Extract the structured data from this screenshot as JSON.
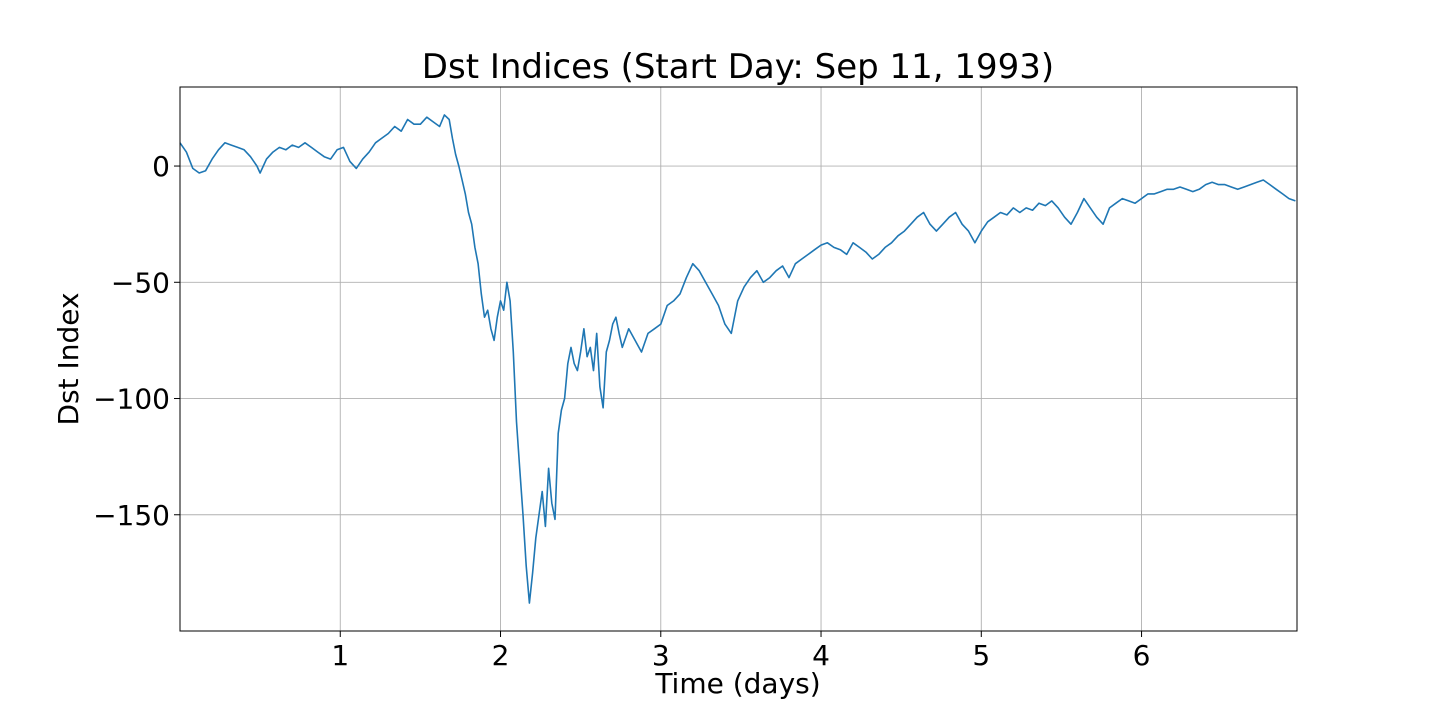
{
  "chart_data": {
    "type": "line",
    "title": "Dst Indices (Start Day: Sep 11, 1993)",
    "xlabel": "Time (days)",
    "ylabel": "Dst Index",
    "xlim": [
      0.0,
      6.97
    ],
    "ylim": [
      -200,
      34
    ],
    "xticks": [
      1,
      2,
      3,
      4,
      5,
      6
    ],
    "xtick_labels": [
      "1",
      "2",
      "3",
      "4",
      "5",
      "6"
    ],
    "yticks": [
      0,
      -50,
      -100,
      -150
    ],
    "ytick_labels": [
      "0",
      "−50",
      "−100",
      "−150"
    ],
    "grid": true,
    "legend": "none",
    "series": [
      {
        "color": "#1f77b4",
        "x": [
          0.0,
          0.04,
          0.08,
          0.12,
          0.16,
          0.2,
          0.24,
          0.28,
          0.32,
          0.36,
          0.4,
          0.44,
          0.48,
          0.5,
          0.54,
          0.58,
          0.62,
          0.66,
          0.7,
          0.74,
          0.78,
          0.82,
          0.86,
          0.9,
          0.94,
          0.98,
          1.02,
          1.06,
          1.1,
          1.14,
          1.18,
          1.22,
          1.26,
          1.3,
          1.34,
          1.38,
          1.42,
          1.46,
          1.5,
          1.54,
          1.58,
          1.62,
          1.65,
          1.68,
          1.7,
          1.72,
          1.74,
          1.76,
          1.78,
          1.8,
          1.82,
          1.84,
          1.86,
          1.88,
          1.9,
          1.92,
          1.94,
          1.96,
          1.98,
          2.0,
          2.02,
          2.04,
          2.06,
          2.08,
          2.1,
          2.12,
          2.14,
          2.16,
          2.18,
          2.2,
          2.22,
          2.24,
          2.26,
          2.28,
          2.3,
          2.32,
          2.34,
          2.36,
          2.38,
          2.4,
          2.42,
          2.44,
          2.46,
          2.48,
          2.5,
          2.52,
          2.54,
          2.56,
          2.58,
          2.6,
          2.62,
          2.64,
          2.66,
          2.68,
          2.7,
          2.72,
          2.74,
          2.76,
          2.8,
          2.84,
          2.88,
          2.92,
          2.96,
          3.0,
          3.04,
          3.08,
          3.12,
          3.16,
          3.2,
          3.24,
          3.28,
          3.32,
          3.36,
          3.4,
          3.44,
          3.48,
          3.52,
          3.56,
          3.6,
          3.64,
          3.68,
          3.72,
          3.76,
          3.8,
          3.84,
          3.88,
          3.92,
          3.96,
          4.0,
          4.04,
          4.08,
          4.12,
          4.16,
          4.2,
          4.24,
          4.28,
          4.32,
          4.36,
          4.4,
          4.44,
          4.48,
          4.52,
          4.56,
          4.6,
          4.64,
          4.68,
          4.72,
          4.76,
          4.8,
          4.84,
          4.88,
          4.92,
          4.96,
          5.0,
          5.04,
          5.08,
          5.12,
          5.16,
          5.2,
          5.24,
          5.28,
          5.32,
          5.36,
          5.4,
          5.44,
          5.48,
          5.52,
          5.56,
          5.6,
          5.64,
          5.68,
          5.72,
          5.76,
          5.8,
          5.84,
          5.88,
          5.92,
          5.96,
          6.0,
          6.04,
          6.08,
          6.12,
          6.16,
          6.2,
          6.24,
          6.28,
          6.32,
          6.36,
          6.4,
          6.44,
          6.48,
          6.52,
          6.56,
          6.6,
          6.64,
          6.68,
          6.72,
          6.76,
          6.8,
          6.84,
          6.88,
          6.92,
          6.96
        ],
        "y": [
          10,
          6,
          -1,
          -3,
          -2,
          3,
          7,
          10,
          9,
          8,
          7,
          4,
          0,
          -3,
          3,
          6,
          8,
          7,
          9,
          8,
          10,
          8,
          6,
          4,
          3,
          7,
          8,
          2,
          -1,
          3,
          6,
          10,
          12,
          14,
          17,
          15,
          20,
          18,
          18,
          21,
          19,
          17,
          22,
          20,
          12,
          5,
          0,
          -6,
          -12,
          -20,
          -25,
          -35,
          -42,
          -55,
          -65,
          -62,
          -70,
          -75,
          -65,
          -58,
          -62,
          -50,
          -58,
          -80,
          -110,
          -130,
          -150,
          -172,
          -188,
          -175,
          -160,
          -150,
          -140,
          -155,
          -130,
          -145,
          -152,
          -115,
          -105,
          -100,
          -85,
          -78,
          -85,
          -88,
          -80,
          -70,
          -82,
          -78,
          -88,
          -72,
          -95,
          -104,
          -80,
          -75,
          -68,
          -65,
          -72,
          -78,
          -70,
          -75,
          -80,
          -72,
          -70,
          -68,
          -60,
          -58,
          -55,
          -48,
          -42,
          -45,
          -50,
          -55,
          -60,
          -68,
          -72,
          -58,
          -52,
          -48,
          -45,
          -50,
          -48,
          -45,
          -43,
          -48,
          -42,
          -40,
          -38,
          -36,
          -34,
          -33,
          -35,
          -36,
          -38,
          -33,
          -35,
          -37,
          -40,
          -38,
          -35,
          -33,
          -30,
          -28,
          -25,
          -22,
          -20,
          -25,
          -28,
          -25,
          -22,
          -20,
          -25,
          -28,
          -33,
          -28,
          -24,
          -22,
          -20,
          -21,
          -18,
          -20,
          -18,
          -19,
          -16,
          -17,
          -15,
          -18,
          -22,
          -25,
          -20,
          -14,
          -18,
          -22,
          -25,
          -18,
          -16,
          -14,
          -15,
          -16,
          -14,
          -12,
          -12,
          -11,
          -10,
          -10,
          -9,
          -10,
          -11,
          -10,
          -8,
          -7,
          -8,
          -8,
          -9,
          -10,
          -9,
          -8,
          -7,
          -6,
          -8,
          -10,
          -12,
          -14,
          -15
        ]
      }
    ]
  }
}
